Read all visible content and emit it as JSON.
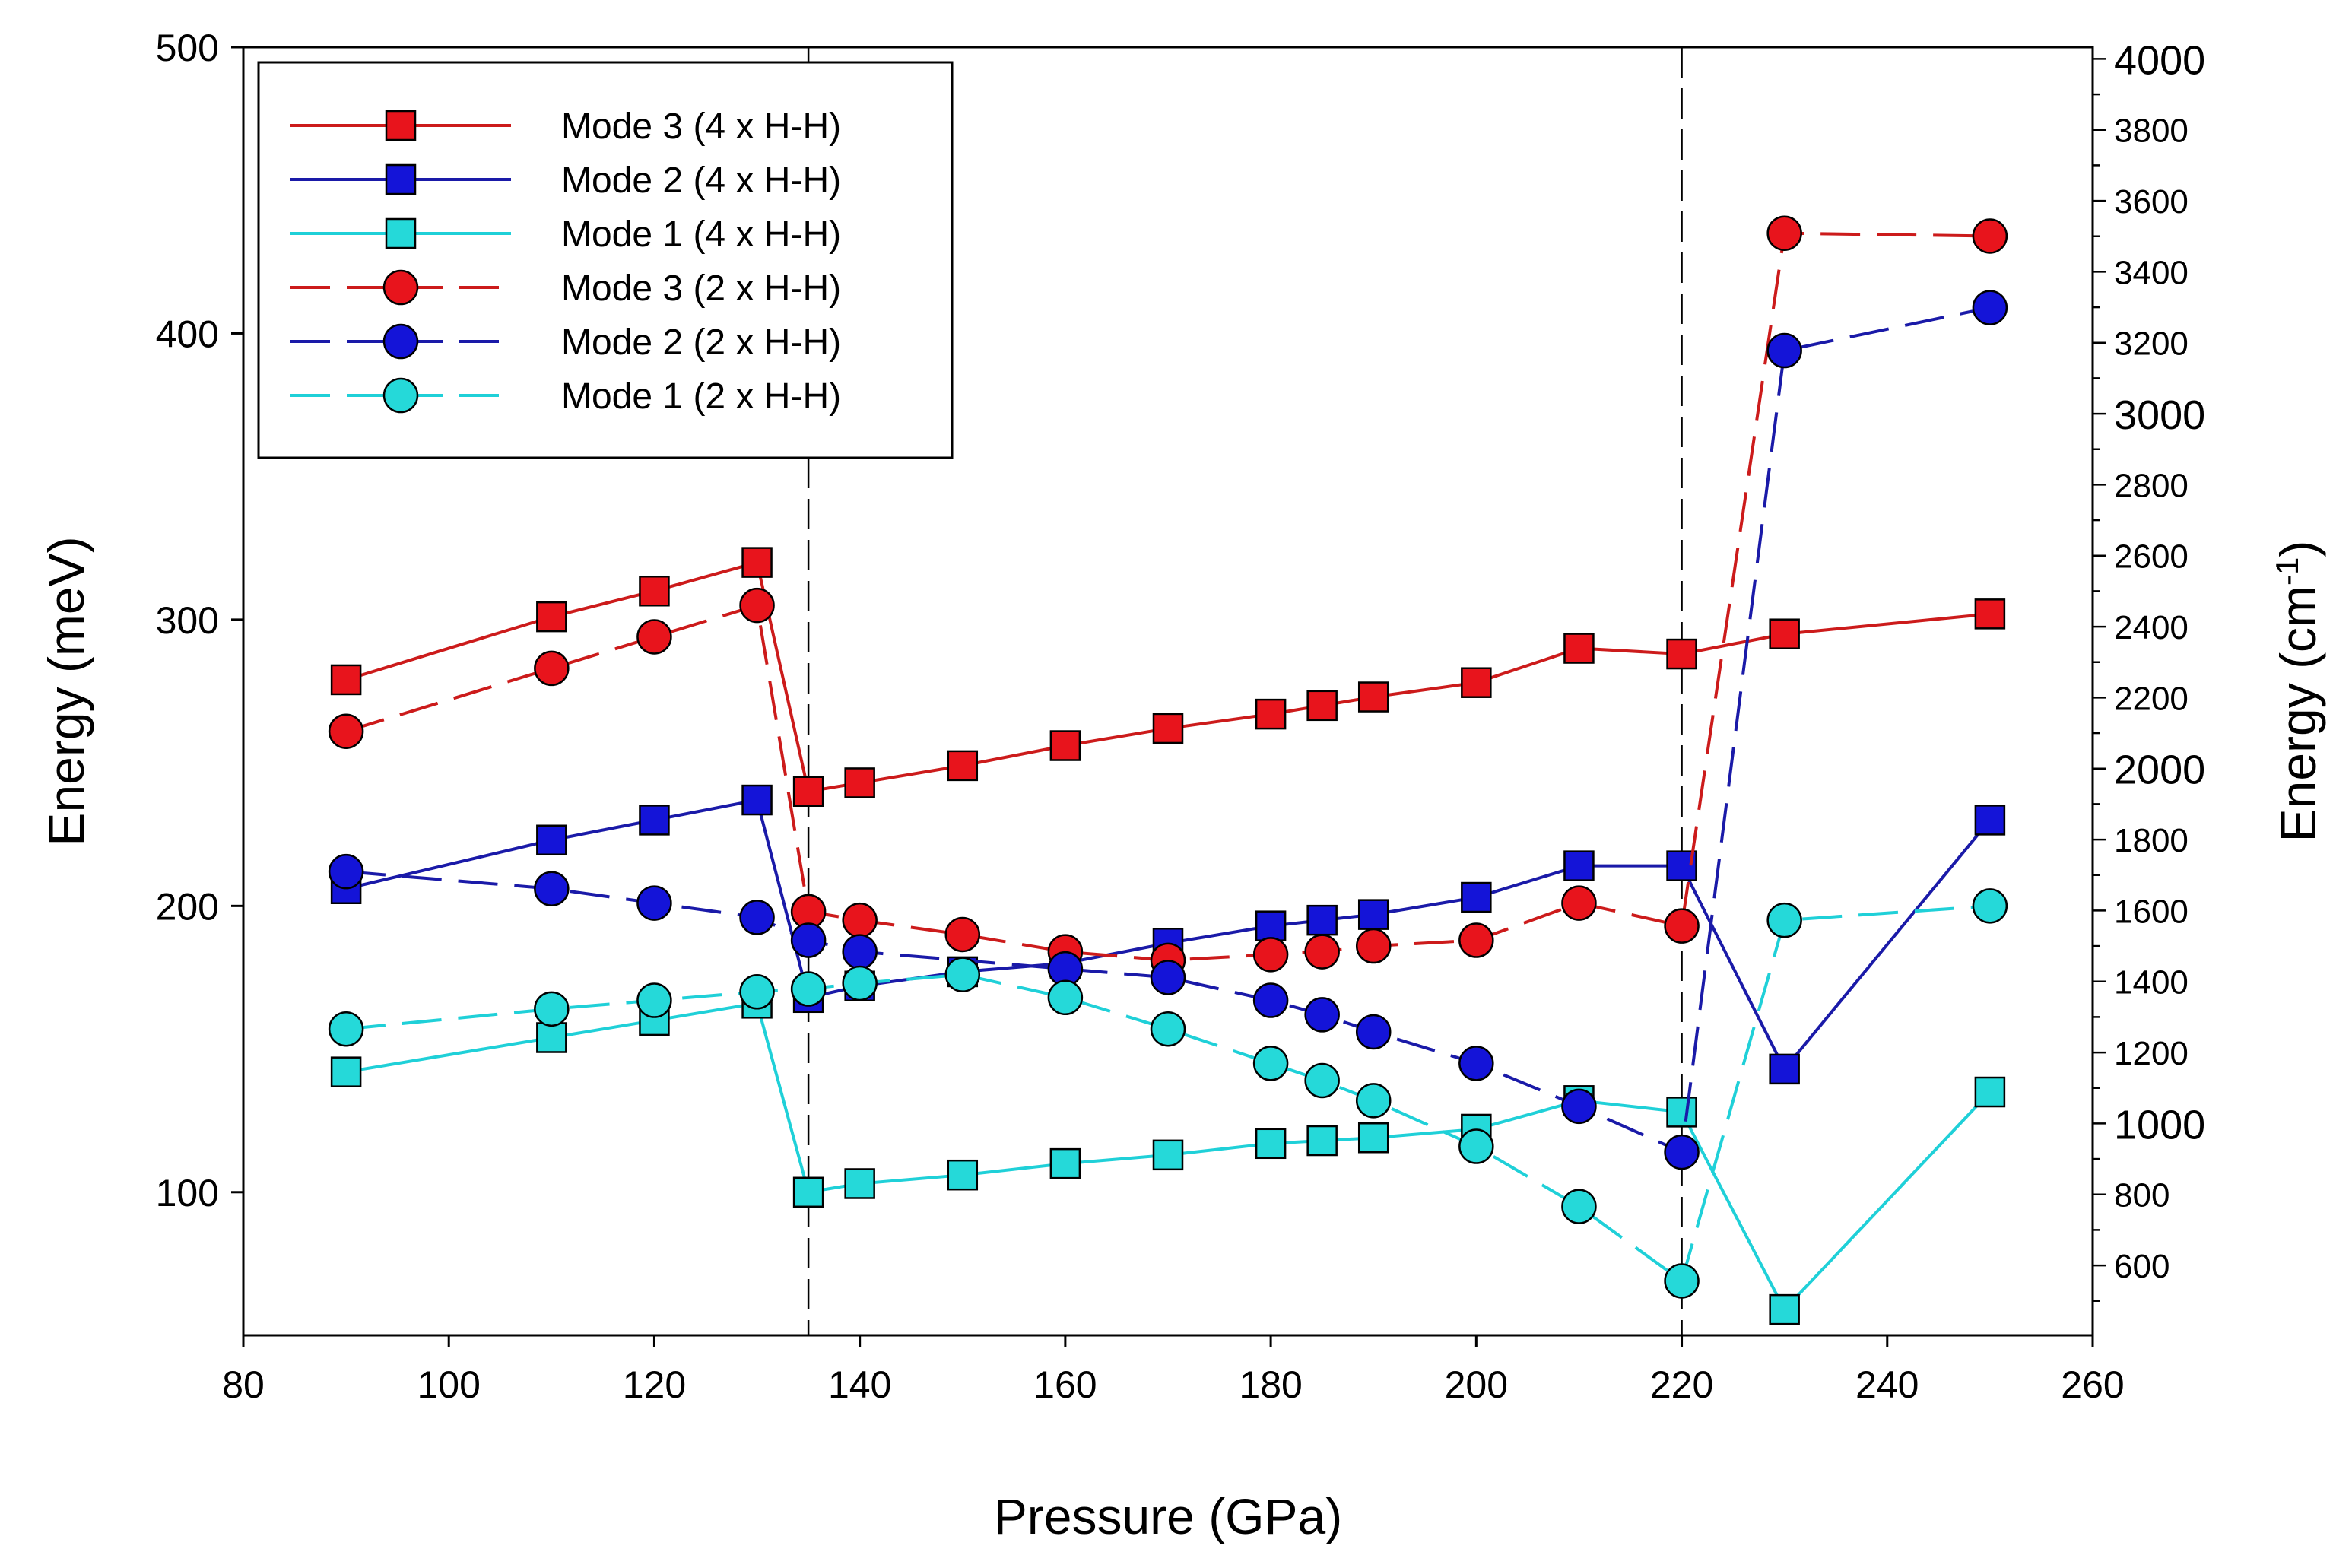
{
  "chart_data": {
    "type": "line",
    "title": "",
    "xlabel": "Pressure (GPa)",
    "ylabel": "Energy (meV)",
    "y2label": {
      "base": "Energy (cm",
      "superscript": "-1",
      "close": ")"
    },
    "xlim": [
      80,
      260
    ],
    "ylim": [
      50,
      500
    ],
    "y2lim": [
      403,
      4033
    ],
    "xticks": [
      "80",
      "100",
      "120",
      "140",
      "160",
      "180",
      "200",
      "220",
      "240",
      "260"
    ],
    "yticks": [
      "100",
      "200",
      "300",
      "400",
      "500"
    ],
    "y2ticks": [
      "600",
      "800",
      "1000",
      "1200",
      "1400",
      "1600",
      "1800",
      "2000",
      "2200",
      "2400",
      "2600",
      "2800",
      "3000",
      "3200",
      "3400",
      "3600",
      "3800",
      "4000"
    ],
    "vlines": [
      135,
      220
    ],
    "legend_position": "top-left",
    "grid": false,
    "series": [
      {
        "name": "Mode 3 (4 x H-H)",
        "color": "#e8141c",
        "line_color": "#cc1b1b",
        "marker": "square",
        "dash": "solid",
        "x": [
          90,
          110,
          120,
          130,
          135,
          140,
          150,
          160,
          170,
          180,
          185,
          190,
          200,
          210,
          220,
          230,
          250
        ],
        "values": [
          279,
          301,
          310,
          320,
          240,
          243,
          249,
          256,
          262,
          267,
          270,
          273,
          278,
          290,
          288,
          295,
          302
        ]
      },
      {
        "name": "Mode 2 (4 x H-H)",
        "color": "#1414d8",
        "line_color": "#1a1aa8",
        "marker": "square",
        "dash": "solid",
        "x": [
          90,
          110,
          120,
          130,
          135,
          140,
          150,
          160,
          170,
          180,
          185,
          190,
          200,
          210,
          220,
          230,
          250
        ],
        "values": [
          206,
          223,
          230,
          237,
          168,
          172,
          177,
          180,
          187,
          193,
          195,
          197,
          203,
          214,
          214,
          143,
          230
        ]
      },
      {
        "name": "Mode 1 (4 x H-H)",
        "color": "#25d9d9",
        "line_color": "#1fd0d8",
        "marker": "square",
        "dash": "solid",
        "x": [
          90,
          110,
          120,
          130,
          135,
          140,
          150,
          160,
          170,
          180,
          185,
          190,
          200,
          210,
          220,
          230,
          250
        ],
        "values": [
          142,
          154,
          160,
          166,
          100,
          103,
          106,
          110,
          113,
          117,
          118,
          119,
          122,
          132,
          128,
          59,
          135
        ]
      },
      {
        "name": "Mode 3 (2 x H-H)",
        "color": "#e8141c",
        "line_color": "#cc1b1b",
        "marker": "circle",
        "dash": "dashed",
        "x": [
          90,
          110,
          120,
          130,
          135,
          140,
          150,
          160,
          170,
          180,
          185,
          190,
          200,
          210,
          220,
          230,
          250
        ],
        "values": [
          261,
          283,
          294,
          305,
          198,
          195,
          190,
          184,
          181,
          183,
          184,
          186,
          188,
          201,
          193,
          435,
          434
        ]
      },
      {
        "name": "Mode 2 (2 x H-H)",
        "color": "#1414d8",
        "line_color": "#1a1aa8",
        "marker": "circle",
        "dash": "dashed",
        "x": [
          90,
          110,
          120,
          130,
          135,
          140,
          160,
          170,
          180,
          185,
          190,
          200,
          210,
          220,
          230,
          250
        ],
        "values": [
          212,
          206,
          201,
          196,
          188,
          184,
          178,
          175,
          167,
          162,
          156,
          145,
          130,
          114,
          394,
          409
        ]
      },
      {
        "name": "Mode 1 (2 x H-H)",
        "color": "#25d9d9",
        "line_color": "#1fd0d8",
        "marker": "circle",
        "dash": "dashed",
        "x": [
          90,
          110,
          120,
          130,
          135,
          140,
          150,
          160,
          170,
          180,
          185,
          190,
          200,
          210,
          220,
          230,
          250
        ],
        "values": [
          157,
          164,
          167,
          170,
          171,
          173,
          176,
          168,
          157,
          145,
          139,
          132,
          116,
          95,
          69,
          195,
          200
        ]
      }
    ]
  }
}
